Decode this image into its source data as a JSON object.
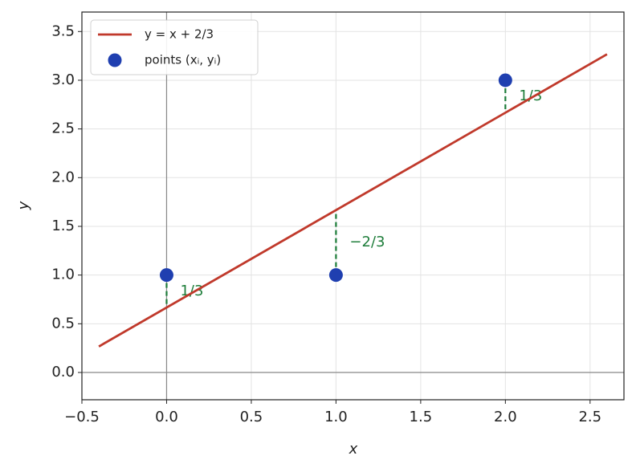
{
  "chart_data": {
    "type": "line",
    "xlabel": "x",
    "ylabel": "y",
    "xlim": [
      -0.5,
      2.7
    ],
    "ylim": [
      -0.28,
      3.7
    ],
    "xticks": [
      {
        "value": -0.5,
        "label": "−0.5"
      },
      {
        "value": 0,
        "label": "0.0"
      },
      0.5,
      {
        "value": 1,
        "label": "1.0"
      },
      1.5,
      {
        "value": 2,
        "label": "2.0"
      },
      2.5
    ],
    "yticks": [
      {
        "value": 0,
        "label": "0.0"
      },
      0.5,
      {
        "value": 1,
        "label": "1.0"
      },
      1.5,
      {
        "value": 2,
        "label": "2.0"
      },
      2.5,
      {
        "value": 3,
        "label": "3.0"
      },
      3.5
    ],
    "grid": true,
    "legend": "upper left",
    "series": [
      {
        "name": "y = x + 2/3",
        "type": "line",
        "color": "#c0392b",
        "x": [
          -0.4,
          2.6
        ],
        "values": [
          0.2667,
          3.2667
        ]
      },
      {
        "name": "points (xᵢ, yᵢ)",
        "type": "scatter",
        "color": "#1f3fb0",
        "x": [
          0,
          1,
          2
        ],
        "values": [
          1,
          1,
          3
        ]
      }
    ],
    "residuals": {
      "color": "#1e7d3a",
      "x": [
        0,
        1,
        2
      ],
      "from": [
        1,
        1,
        3
      ],
      "to": [
        0.6667,
        1.6667,
        2.6667
      ],
      "labels": [
        "1/3",
        "−2/3",
        "1/3"
      ]
    }
  }
}
